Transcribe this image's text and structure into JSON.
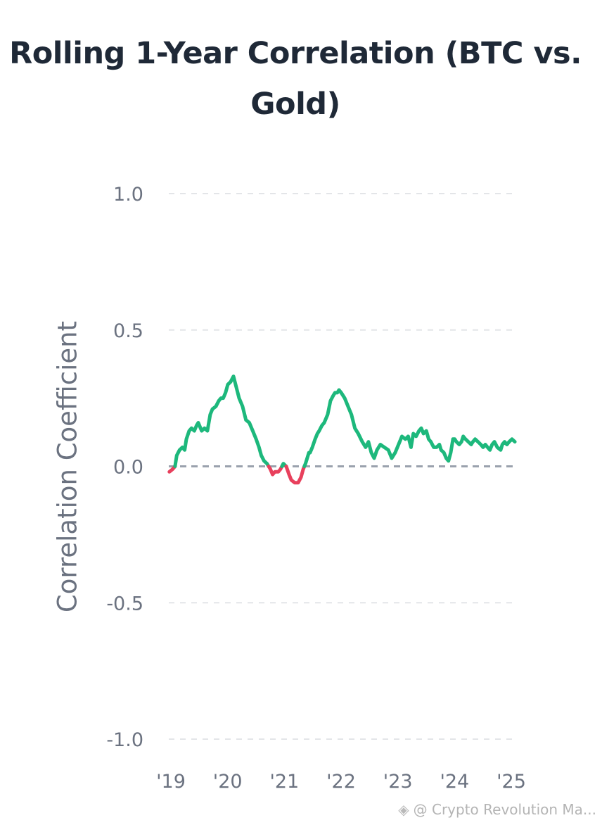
{
  "chart_data": {
    "type": "line",
    "title": "Rolling 1-Year Correlation (BTC vs. Gold)",
    "ylabel": "Correlation Coefficient",
    "xlabel": "",
    "ylim": [
      -1.0,
      1.0
    ],
    "yticks": [
      "1.0",
      "0.5",
      "0.0",
      "-0.5",
      "-1.0"
    ],
    "xlim": [
      2019.0,
      2025.1
    ],
    "xticks": [
      {
        "value": 2019,
        "label": "'19"
      },
      {
        "value": 2020,
        "label": "'20"
      },
      {
        "value": 2021,
        "label": "'21"
      },
      {
        "value": 2022,
        "label": "'22"
      },
      {
        "value": 2023,
        "label": "'23"
      },
      {
        "value": 2024,
        "label": "'24"
      },
      {
        "value": 2025,
        "label": "'25"
      }
    ],
    "grid": "horizontal-dashed",
    "zero_line": "dashed",
    "positive_color": "#1db87c",
    "negative_color": "#e8405c",
    "series": [
      {
        "x": [
          2019.01,
          2019.07,
          2019.11,
          2019.14,
          2019.19,
          2019.24,
          2019.28,
          2019.31,
          2019.36,
          2019.4,
          2019.45,
          2019.49,
          2019.52,
          2019.58,
          2019.63,
          2019.68,
          2019.73,
          2019.77,
          2019.83,
          2019.88,
          2019.92,
          2019.96,
          2020.0,
          2020.04,
          2020.09,
          2020.14,
          2020.19,
          2020.24,
          2020.3,
          2020.36,
          2020.42,
          2020.48,
          2020.54,
          2020.59,
          2020.63,
          2020.68,
          2020.73,
          2020.79,
          2020.83,
          2020.87,
          2020.93,
          2020.97,
          2021.02,
          2021.07,
          2021.12,
          2021.16,
          2021.22,
          2021.28,
          2021.33,
          2021.37,
          2021.41,
          2021.44,
          2021.47,
          2021.49,
          2021.53,
          2021.58,
          2021.62,
          2021.65,
          2021.7,
          2021.74,
          2021.8,
          2021.85,
          2021.9,
          2021.93,
          2021.97,
          2022.0,
          2022.04,
          2022.1,
          2022.16,
          2022.22,
          2022.28,
          2022.34,
          2022.41,
          2022.47,
          2022.52,
          2022.57,
          2022.62,
          2022.67,
          2022.73,
          2022.8,
          2022.87,
          2022.93,
          2022.99,
          2023.05,
          2023.11,
          2023.17,
          2023.22,
          2023.27,
          2023.31,
          2023.36,
          2023.41,
          2023.45,
          2023.49,
          2023.54,
          2023.58,
          2023.62,
          2023.67,
          2023.72,
          2023.77,
          2023.8,
          2023.85,
          2023.89,
          2023.93,
          2023.97,
          2024.01,
          2024.04,
          2024.07,
          2024.12,
          2024.16,
          2024.19,
          2024.23,
          2024.28,
          2024.33,
          2024.36,
          2024.4,
          2024.45,
          2024.5,
          2024.54,
          2024.58,
          2024.62,
          2024.66,
          2024.7,
          2024.74,
          2024.79,
          2024.85,
          2024.88,
          2024.92,
          2024.96,
          2025.0,
          2025.05,
          2025.1
        ],
        "y": [
          -0.02,
          -0.01,
          0.0,
          0.04,
          0.06,
          0.07,
          0.06,
          0.1,
          0.13,
          0.14,
          0.13,
          0.15,
          0.16,
          0.13,
          0.14,
          0.13,
          0.19,
          0.21,
          0.22,
          0.24,
          0.25,
          0.25,
          0.27,
          0.3,
          0.31,
          0.33,
          0.29,
          0.25,
          0.22,
          0.17,
          0.16,
          0.13,
          0.1,
          0.07,
          0.04,
          0.02,
          0.01,
          -0.01,
          -0.03,
          -0.02,
          -0.02,
          -0.01,
          0.01,
          0.0,
          -0.03,
          -0.05,
          -0.06,
          -0.06,
          -0.04,
          -0.01,
          0.01,
          0.03,
          0.05,
          0.05,
          0.07,
          0.1,
          0.12,
          0.13,
          0.15,
          0.16,
          0.19,
          0.24,
          0.26,
          0.27,
          0.27,
          0.28,
          0.27,
          0.25,
          0.22,
          0.19,
          0.14,
          0.12,
          0.09,
          0.07,
          0.09,
          0.05,
          0.03,
          0.06,
          0.08,
          0.07,
          0.06,
          0.03,
          0.05,
          0.08,
          0.11,
          0.1,
          0.11,
          0.07,
          0.12,
          0.11,
          0.13,
          0.14,
          0.12,
          0.13,
          0.1,
          0.09,
          0.07,
          0.07,
          0.08,
          0.06,
          0.05,
          0.03,
          0.02,
          0.05,
          0.1,
          0.1,
          0.09,
          0.08,
          0.09,
          0.11,
          0.1,
          0.09,
          0.08,
          0.09,
          0.1,
          0.09,
          0.08,
          0.07,
          0.08,
          0.07,
          0.06,
          0.08,
          0.09,
          0.07,
          0.06,
          0.08,
          0.09,
          0.08,
          0.09,
          0.1,
          0.09
        ]
      }
    ]
  },
  "watermark": {
    "text": "@ Crypto Revolution Ma...",
    "icon": "binance-logo-icon"
  }
}
